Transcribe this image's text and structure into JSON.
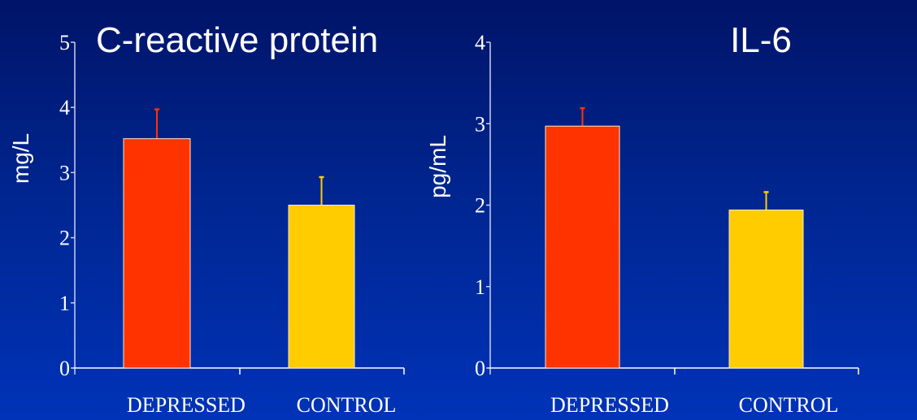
{
  "colors": {
    "depressed": "#ff3300",
    "control": "#ffcc00",
    "axis": "#ffffff",
    "text": "#ffffff"
  },
  "chart_data": [
    {
      "type": "bar",
      "title": "C-reactive protein",
      "ylabel": "mg/L",
      "xlabel": "",
      "ylim": [
        0,
        5
      ],
      "yticks": [
        "0",
        "1",
        "2",
        "3",
        "4",
        "5"
      ],
      "categories": [
        "DEPRESSED",
        "CONTROL"
      ],
      "values": [
        3.52,
        2.5
      ],
      "error_upper": [
        3.97,
        2.93
      ],
      "grid": false
    },
    {
      "type": "bar",
      "title": "IL-6",
      "ylabel": "pg/mL",
      "xlabel": "",
      "ylim": [
        0,
        4
      ],
      "yticks": [
        "0",
        "1",
        "2",
        "3",
        "4"
      ],
      "categories": [
        "DEPRESSED",
        "CONTROL"
      ],
      "values": [
        2.97,
        1.94
      ],
      "error_upper": [
        3.19,
        2.16
      ],
      "grid": false
    }
  ]
}
